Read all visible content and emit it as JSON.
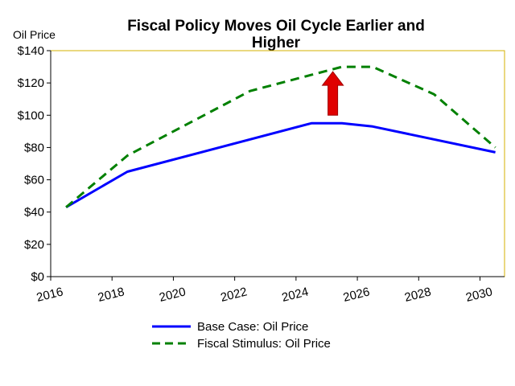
{
  "chart_data": {
    "type": "line",
    "title_line1": "Fiscal Policy Moves Oil Cycle Earlier and",
    "title_line2": "Higher",
    "ylabel": "Oil Price",
    "xlabel": "",
    "xlim": [
      2016,
      2030.8
    ],
    "ylim": [
      0,
      140
    ],
    "y_tick_values": [
      0,
      20,
      40,
      60,
      80,
      100,
      120,
      140
    ],
    "y_tick_labels": [
      "$0",
      "$20",
      "$40",
      "$60",
      "$80",
      "$100",
      "$120",
      "$140"
    ],
    "x_tick_values": [
      2016,
      2018,
      2020,
      2022,
      2024,
      2026,
      2028,
      2030
    ],
    "x_tick_labels": [
      "2016",
      "2018",
      "2020",
      "2022",
      "2024",
      "2026",
      "2028",
      "2030"
    ],
    "grid": false,
    "legend_position": "bottom",
    "series": [
      {
        "name": "Base Case: Oil Price",
        "color": "#0000ff",
        "style": "solid",
        "points": [
          [
            2016.5,
            43
          ],
          [
            2018.5,
            65
          ],
          [
            2024.5,
            95
          ],
          [
            2025.5,
            95
          ],
          [
            2026.5,
            93
          ],
          [
            2030.5,
            77
          ]
        ]
      },
      {
        "name": "Fiscal Stimulus: Oil Price",
        "color": "#008000",
        "style": "dashed",
        "points": [
          [
            2016.5,
            43
          ],
          [
            2018.5,
            75
          ],
          [
            2022.5,
            115
          ],
          [
            2024.5,
            125
          ],
          [
            2025.5,
            130
          ],
          [
            2026.5,
            130
          ],
          [
            2028.5,
            113
          ],
          [
            2030.5,
            80
          ]
        ]
      }
    ],
    "annotation": {
      "type": "up-arrow",
      "color": "#e00000",
      "x": 2025.2,
      "y_from": 100,
      "y_to": 127
    },
    "plot_border_color": "#d4b000"
  }
}
